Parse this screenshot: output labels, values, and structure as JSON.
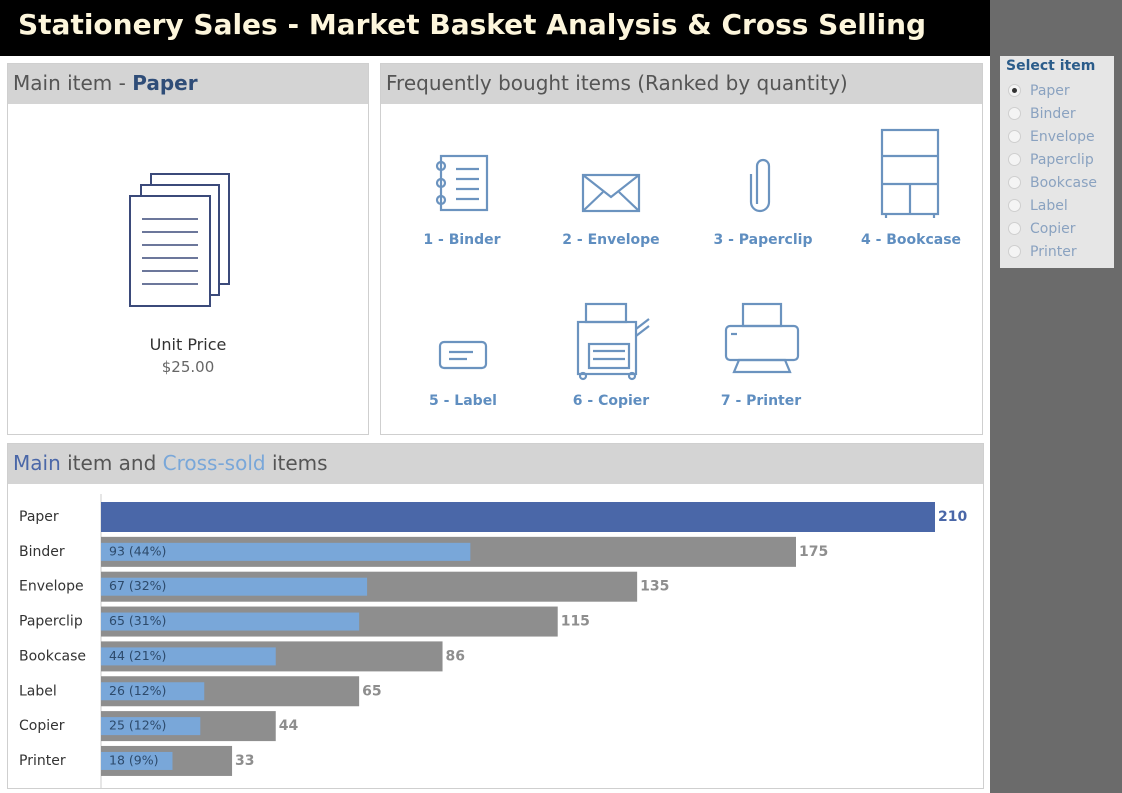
{
  "header": {
    "title": "Stationery Sales - Market Basket Analysis & Cross Selling"
  },
  "main_item": {
    "label": "Main item -",
    "name": "Paper",
    "price_label": "Unit Price",
    "price": "$25.00"
  },
  "frequent_items": {
    "title": "Frequently bought items (Ranked by quantity)",
    "items": [
      "1 - Binder",
      "2 - Envelope",
      "3 - Paperclip",
      "4 - Bookcase",
      "5 - Label",
      "6 - Copier",
      "7 - Printer"
    ]
  },
  "select_item": {
    "title": "Select item",
    "selected": 0,
    "options": [
      "Paper",
      "Binder",
      "Envelope",
      "Paperclip",
      "Bookcase",
      "Label",
      "Copier",
      "Printer"
    ]
  },
  "chart_data": {
    "type": "bar",
    "orientation": "horizontal",
    "title": [
      "Main",
      "item and",
      "Cross-sold",
      "items"
    ],
    "title_colors": [
      "#4a67a8",
      "#555555",
      "#79a7d9",
      "#555555"
    ],
    "categories": [
      "Paper",
      "Binder",
      "Envelope",
      "Paperclip",
      "Bookcase",
      "Label",
      "Copier",
      "Printer"
    ],
    "series": [
      {
        "colors": [
          "#4a67a8",
          "#8e8e8e",
          "#8e8e8e",
          "#8e8e8e",
          "#8e8e8e",
          "#8e8e8e",
          "#8e8e8e",
          "#8e8e8e"
        ],
        "values": [
          210,
          175,
          135,
          115,
          86,
          65,
          44,
          33
        ]
      },
      {
        "color": "#79a7d9",
        "values": [
          null,
          93,
          67,
          65,
          44,
          26,
          25,
          18
        ],
        "value_labels": [
          null,
          "93 (44%)",
          "67 (32%)",
          "65 (31%)",
          "44 (21%)",
          "26 (12%)",
          "25 (12%)",
          "18 (9%)"
        ]
      }
    ]
  }
}
